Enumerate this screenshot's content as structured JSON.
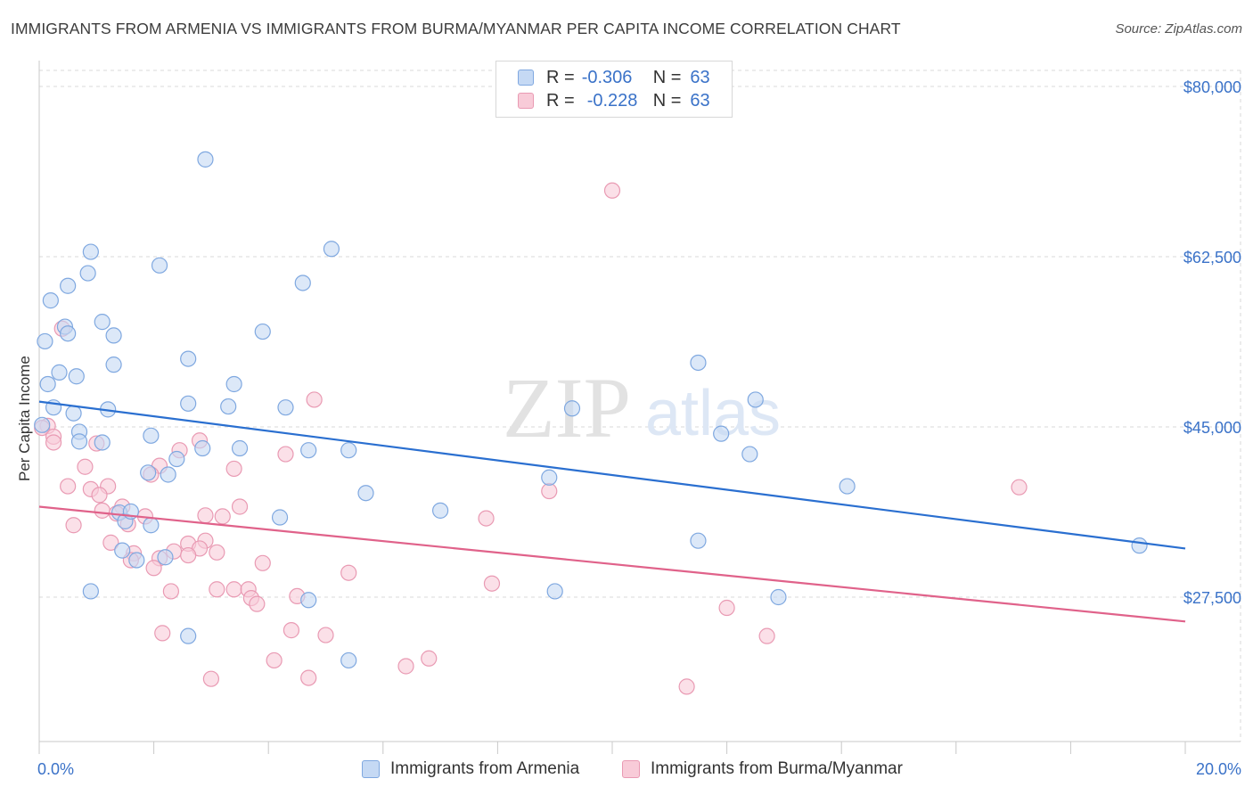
{
  "header": {
    "title": "IMMIGRANTS FROM ARMENIA VS IMMIGRANTS FROM BURMA/MYANMAR PER CAPITA INCOME CORRELATION CHART",
    "source": "Source: ZipAtlas.com"
  },
  "watermark": {
    "zip": "ZIP",
    "atlas": "atlas"
  },
  "legend": {
    "r_label": "R =",
    "n_label": "N =",
    "series": [
      {
        "name": "Immigrants from Armenia",
        "r": "-0.306",
        "n": "63",
        "fill": "#c5d9f4",
        "stroke": "#7fa8e0",
        "line": "#2a6fd0"
      },
      {
        "name": "Immigrants from Burma/Myanmar",
        "r": "-0.228",
        "n": "63",
        "fill": "#f8cbd8",
        "stroke": "#e99ab3",
        "line": "#e0628a"
      }
    ]
  },
  "colors": {
    "axis_text": "#3a72c8",
    "grid": "#d9d9d9"
  },
  "chart_data": {
    "type": "scatter",
    "title": "IMMIGRANTS FROM ARMENIA VS IMMIGRANTS FROM BURMA/MYANMAR PER CAPITA INCOME CORRELATION CHART",
    "xlabel": "",
    "ylabel": "Per Capita Income",
    "xlim": [
      0,
      20
    ],
    "ylim": [
      10000,
      83000
    ],
    "x_tick_labels": [
      "0.0%",
      "20.0%"
    ],
    "y_ticks": [
      27500,
      45000,
      62500,
      80000
    ],
    "y_tick_labels": [
      "$27,500",
      "$45,000",
      "$62,500",
      "$80,000"
    ],
    "series": [
      {
        "name": "Immigrants from Armenia",
        "trendline": {
          "x": [
            0,
            20
          ],
          "y": [
            47600,
            32500
          ]
        },
        "points": [
          [
            2.9,
            72500
          ],
          [
            0.2,
            58000
          ],
          [
            0.9,
            63000
          ],
          [
            0.5,
            59500
          ],
          [
            0.85,
            60800
          ],
          [
            2.1,
            61600
          ],
          [
            5.1,
            63300
          ],
          [
            4.6,
            59800
          ],
          [
            0.45,
            55300
          ],
          [
            1.1,
            55800
          ],
          [
            1.3,
            54400
          ],
          [
            0.1,
            53800
          ],
          [
            3.9,
            54800
          ],
          [
            0.5,
            54600
          ],
          [
            2.6,
            52000
          ],
          [
            1.3,
            51400
          ],
          [
            0.35,
            50600
          ],
          [
            0.65,
            50200
          ],
          [
            0.15,
            49400
          ],
          [
            3.4,
            49400
          ],
          [
            11.5,
            51600
          ],
          [
            12.5,
            47800
          ],
          [
            2.6,
            47400
          ],
          [
            3.3,
            47100
          ],
          [
            4.3,
            47000
          ],
          [
            0.25,
            47000
          ],
          [
            1.2,
            46800
          ],
          [
            9.3,
            46900
          ],
          [
            0.6,
            46400
          ],
          [
            0.05,
            45200
          ],
          [
            0.7,
            44500
          ],
          [
            1.95,
            44100
          ],
          [
            0.7,
            43500
          ],
          [
            1.1,
            43400
          ],
          [
            11.9,
            44300
          ],
          [
            12.4,
            42200
          ],
          [
            2.85,
            42800
          ],
          [
            3.5,
            42800
          ],
          [
            4.7,
            42600
          ],
          [
            5.4,
            42600
          ],
          [
            2.4,
            41700
          ],
          [
            1.9,
            40300
          ],
          [
            2.25,
            40100
          ],
          [
            8.9,
            39800
          ],
          [
            14.1,
            38900
          ],
          [
            5.7,
            38200
          ],
          [
            7.0,
            36400
          ],
          [
            4.2,
            35700
          ],
          [
            1.4,
            36200
          ],
          [
            1.5,
            35300
          ],
          [
            1.95,
            34900
          ],
          [
            1.45,
            32300
          ],
          [
            1.7,
            31300
          ],
          [
            2.2,
            31600
          ],
          [
            11.5,
            33300
          ],
          [
            19.2,
            32800
          ],
          [
            0.9,
            28100
          ],
          [
            9.0,
            28100
          ],
          [
            12.9,
            27500
          ],
          [
            4.7,
            27200
          ],
          [
            2.6,
            23500
          ],
          [
            5.4,
            21000
          ],
          [
            1.6,
            36300
          ]
        ]
      },
      {
        "name": "Immigrants from Burma/Myanmar",
        "trendline": {
          "x": [
            0,
            20
          ],
          "y": [
            36800,
            25000
          ]
        },
        "points": [
          [
            10.0,
            69300
          ],
          [
            0.4,
            55100
          ],
          [
            4.8,
            47800
          ],
          [
            0.15,
            45100
          ],
          [
            0.05,
            44900
          ],
          [
            0.25,
            44000
          ],
          [
            0.25,
            43400
          ],
          [
            2.8,
            43600
          ],
          [
            1.0,
            43300
          ],
          [
            2.45,
            42600
          ],
          [
            4.3,
            42200
          ],
          [
            2.1,
            41000
          ],
          [
            0.8,
            40900
          ],
          [
            3.4,
            40700
          ],
          [
            1.95,
            40100
          ],
          [
            0.5,
            38900
          ],
          [
            0.9,
            38600
          ],
          [
            1.2,
            38900
          ],
          [
            17.1,
            38800
          ],
          [
            8.9,
            38400
          ],
          [
            1.05,
            38000
          ],
          [
            1.45,
            36800
          ],
          [
            3.5,
            36800
          ],
          [
            1.1,
            36400
          ],
          [
            1.35,
            36100
          ],
          [
            1.85,
            35800
          ],
          [
            2.9,
            35900
          ],
          [
            3.2,
            35800
          ],
          [
            7.8,
            35600
          ],
          [
            0.6,
            34900
          ],
          [
            1.55,
            35000
          ],
          [
            2.9,
            33300
          ],
          [
            1.25,
            33100
          ],
          [
            2.6,
            33000
          ],
          [
            2.8,
            32500
          ],
          [
            2.35,
            32200
          ],
          [
            1.65,
            32000
          ],
          [
            1.6,
            31300
          ],
          [
            2.6,
            31800
          ],
          [
            3.1,
            32100
          ],
          [
            3.9,
            31000
          ],
          [
            2.1,
            31500
          ],
          [
            2.0,
            30500
          ],
          [
            5.4,
            30000
          ],
          [
            7.9,
            28900
          ],
          [
            3.1,
            28300
          ],
          [
            3.4,
            28300
          ],
          [
            3.65,
            28300
          ],
          [
            4.5,
            27600
          ],
          [
            2.3,
            28100
          ],
          [
            3.7,
            27400
          ],
          [
            3.8,
            26800
          ],
          [
            12.0,
            26400
          ],
          [
            4.4,
            24100
          ],
          [
            2.15,
            23800
          ],
          [
            5.0,
            23600
          ],
          [
            12.7,
            23500
          ],
          [
            4.1,
            21000
          ],
          [
            6.8,
            21200
          ],
          [
            6.4,
            20400
          ],
          [
            3.0,
            19100
          ],
          [
            4.7,
            19200
          ],
          [
            11.3,
            18300
          ]
        ]
      }
    ]
  }
}
